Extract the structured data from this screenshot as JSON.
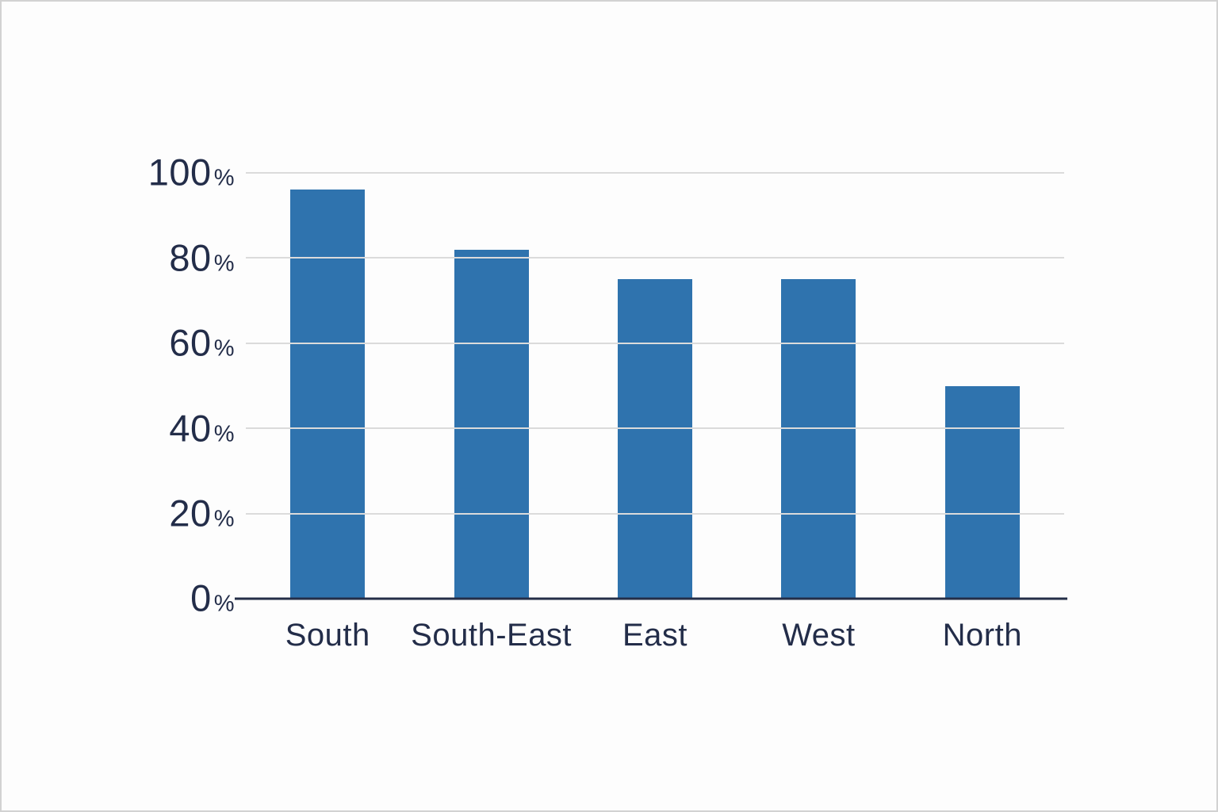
{
  "window": {
    "background_color": "#FDFDFD",
    "frame_border_color": "#D2D2D2"
  },
  "chart_data": {
    "type": "bar",
    "title": "",
    "xlabel": "",
    "ylabel": "",
    "categories": [
      "South",
      "South-East",
      "East",
      "West",
      "North"
    ],
    "values": [
      96,
      82,
      75,
      75,
      50
    ],
    "unit": "%",
    "ylim": [
      0,
      100
    ],
    "yticks": [
      0,
      20,
      40,
      60,
      80,
      100
    ],
    "ytick_suffix": "%",
    "grid": true,
    "legend": false,
    "legend_position": "none",
    "bar_color": "#2F73AE",
    "grid_color": "#DBDBDB",
    "axis_line_color": "#242E48",
    "label_color": "#232D49"
  }
}
